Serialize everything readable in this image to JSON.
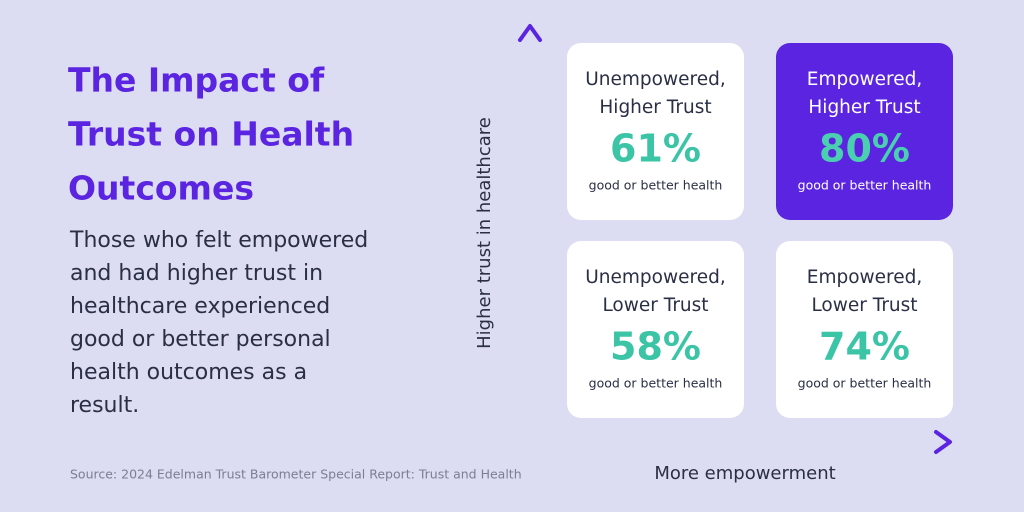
{
  "title": [
    "The Impact of",
    "Trust on Health",
    "Outcomes"
  ],
  "body": [
    "Those who felt empowered",
    "and had higher trust in",
    "healthcare experienced",
    "good or better personal",
    "health outcomes as a",
    "result."
  ],
  "source": "Source: 2024 Edelman Trust Barometer Special Report: Trust and Health",
  "y_axis_label": "Higher trust in healthcare",
  "x_axis_label": "More empowerment",
  "quadrants": [
    {
      "label": [
        "Unempowered,",
        "Higher Trust"
      ],
      "value": "61%",
      "caption": "good or better health"
    },
    {
      "label": [
        "Empowered,",
        "Higher Trust"
      ],
      "value": "80%",
      "caption": "good or better health"
    },
    {
      "label": [
        "Unempowered,",
        "Lower Trust"
      ],
      "value": "58%",
      "caption": "good or better health"
    },
    {
      "label": [
        "Empowered,",
        "Lower Trust"
      ],
      "value": "74%",
      "caption": "good or better health"
    }
  ]
}
